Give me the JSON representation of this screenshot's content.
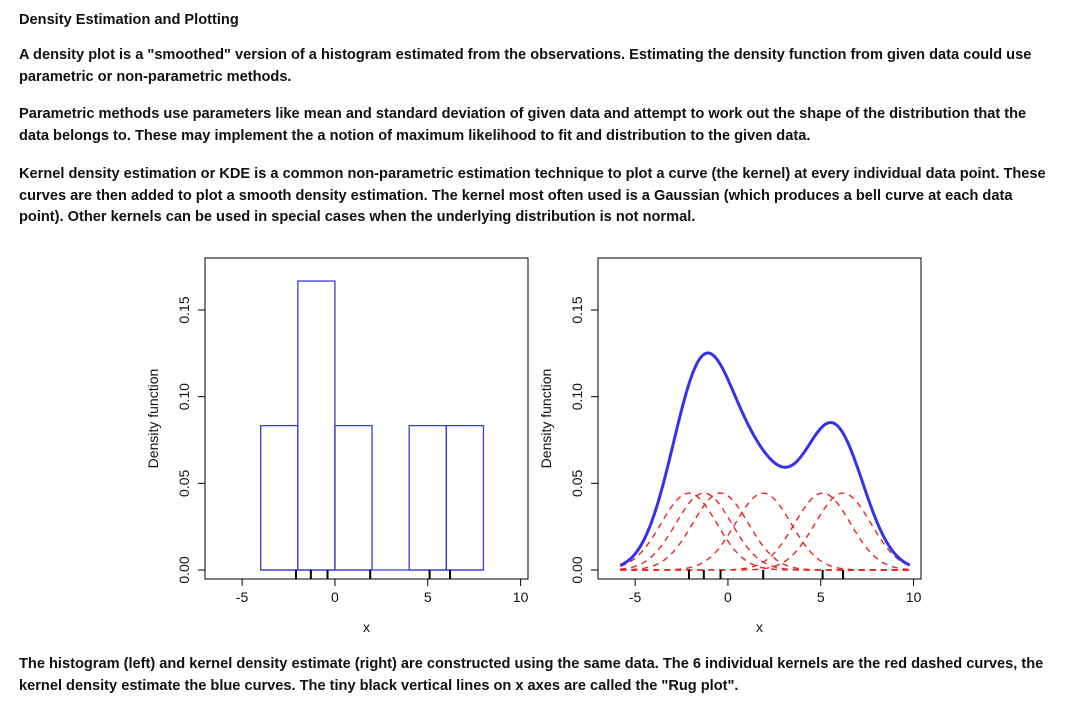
{
  "text": {
    "heading": "Density Estimation and Plotting",
    "para1": "A density plot is a \"smoothed\" version of a histogram estimated from the observations. Estimating the density function from given data could use parametric or non-parametric methods.",
    "para2": "Parametric methods use parameters like mean and standard deviation of given data and attempt to work out the shape of the distribution that the data belongs to. These may implement the a notion of maximum likelihood to fit and distribution to the given data.",
    "para3": "Kernel density estimation or KDE is a common non-parametric estimation technique to plot a curve (the kernel) at every individual data point. These curves are then added to plot a smooth density estimation. The kernel most often used is a Gaussian (which produces a bell curve at each data point). Other kernels can be used in special cases when the underlying distribution is not normal.",
    "caption": "The histogram (left) and kernel density estimate (right) are constructed using the same data. The 6 individual kernels are the red dashed curves, the kernel density estimate the blue curves. The tiny black vertical lines on x axes are called the \"Rug plot\"."
  },
  "chart_data": [
    {
      "type": "bar",
      "subtype": "histogram",
      "xlabel": "x",
      "ylabel": "Density function",
      "xlim": [
        -7,
        10.4
      ],
      "ylim": [
        0,
        0.18
      ],
      "xticks": [
        -5,
        0,
        5,
        10
      ],
      "yticks": [
        0.0,
        0.05,
        0.1,
        0.15
      ],
      "ytick_labels": [
        "0.00",
        "0.05",
        "0.10",
        "0.15"
      ],
      "bins": [
        {
          "x0": -4,
          "x1": -2,
          "density": 0.0833
        },
        {
          "x0": -2,
          "x1": 0,
          "density": 0.1667
        },
        {
          "x0": 0,
          "x1": 2,
          "density": 0.0833
        },
        {
          "x0": 2,
          "x1": 4,
          "density": 0
        },
        {
          "x0": 4,
          "x1": 6,
          "density": 0.0833
        },
        {
          "x0": 6,
          "x1": 8,
          "density": 0.0833
        }
      ],
      "rug": [
        -2.1,
        -1.3,
        -0.4,
        1.9,
        5.1,
        6.2
      ],
      "bar_color": "#3b3bd6",
      "grid": false
    },
    {
      "type": "line",
      "subtype": "kde",
      "xlabel": "x",
      "ylabel": "Density function",
      "xlim": [
        -7,
        10.4
      ],
      "ylim": [
        0,
        0.18
      ],
      "xticks": [
        -5,
        0,
        5,
        10
      ],
      "yticks": [
        0.0,
        0.05,
        0.1,
        0.15
      ],
      "ytick_labels": [
        "0.00",
        "0.05",
        "0.10",
        "0.15"
      ],
      "data_points": [
        -2.1,
        -1.3,
        -0.4,
        1.9,
        5.1,
        6.2
      ],
      "bandwidth": 1.5,
      "series": [
        {
          "role": "kde",
          "style": "solid",
          "color": "#3333ee"
        },
        {
          "role": "kernels",
          "style": "dashed",
          "color": "#ee2222"
        }
      ],
      "rug": [
        -2.1,
        -1.3,
        -0.4,
        1.9,
        5.1,
        6.2
      ],
      "grid": false
    }
  ]
}
